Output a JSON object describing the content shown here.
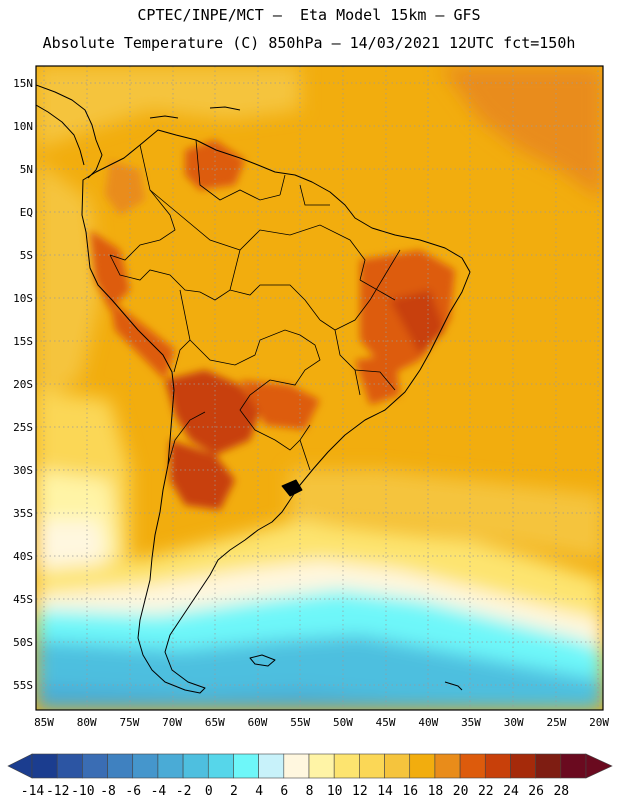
{
  "header": {
    "title_line1": "CPTEC/INPE/MCT –  Eta Model 15km – GFS",
    "title_line2": "Absolute Temperature (C) 850hPa – 14/03/2021 12UTC fct=150h"
  },
  "map": {
    "region": "South America",
    "lon_range": [
      -86,
      -19
    ],
    "lat_range": [
      -59,
      17
    ],
    "lat_labels": [
      "15N",
      "10N",
      "5N",
      "EQ",
      "5S",
      "10S",
      "15S",
      "20S",
      "25S",
      "30S",
      "35S",
      "40S",
      "45S",
      "50S",
      "55S"
    ],
    "lon_labels": [
      "85W",
      "80W",
      "75W",
      "70W",
      "65W",
      "60W",
      "55W",
      "50W",
      "45W",
      "40W",
      "35W",
      "30W",
      "25W",
      "20W"
    ],
    "gridlines": "dotted",
    "background_color": "#f2ad0e"
  },
  "colorbar": {
    "unit": "C",
    "tick_labels": [
      "-14",
      "-12",
      "-10",
      "-8",
      "-6",
      "-4",
      "-2",
      "0",
      "2",
      "4",
      "6",
      "8",
      "10",
      "12",
      "14",
      "16",
      "18",
      "20",
      "22",
      "24",
      "26",
      "28"
    ],
    "colors": [
      "#1b3d8f",
      "#2c55a3",
      "#3a6db4",
      "#3f81c0",
      "#4596cc",
      "#4aabd6",
      "#4ebfdf",
      "#56d6ea",
      "#6ef7f9",
      "#c8f2fa",
      "#fff7df",
      "#fff4a6",
      "#fde46f",
      "#fbd756",
      "#f5c43d",
      "#f2ad0e",
      "#e98c1a",
      "#dd5b0c",
      "#c8400a",
      "#a52a0a",
      "#7e1d12",
      "#6a0a1f"
    ]
  }
}
